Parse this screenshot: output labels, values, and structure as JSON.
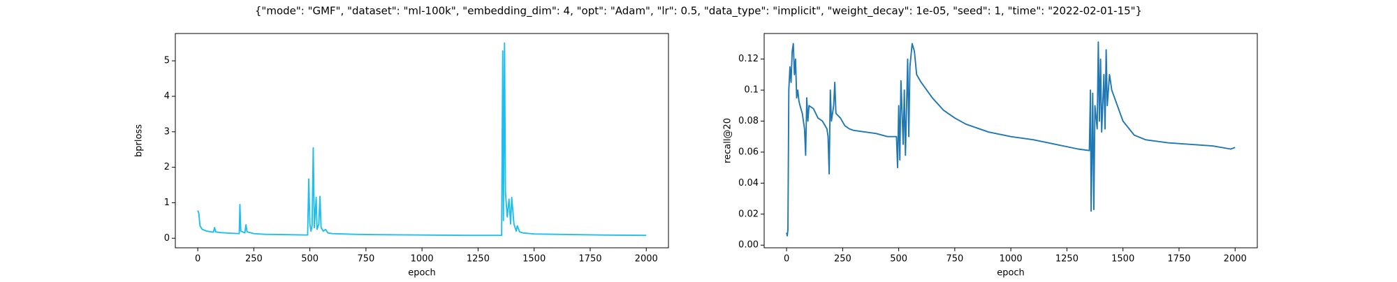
{
  "title": "{\"mode\": \"GMF\", \"dataset\": \"ml-100k\", \"embedding_dim\": 4, \"opt\": \"Adam\", \"lr\": 0.5, \"data_type\": \"implicit\", \"weight_decay\": 1e-05, \"seed\": 1, \"time\": \"2022-02-01-15\"}",
  "chart_data": [
    {
      "type": "line",
      "xlabel": "epoch",
      "ylabel": "bprloss",
      "color": "#1ebff0",
      "xlim": [
        -99.95,
        2098.95
      ],
      "ylim": [
        -0.27,
        5.77
      ],
      "xticks": [
        0,
        250,
        500,
        750,
        1000,
        1250,
        1500,
        1750,
        2000
      ],
      "yticks": [
        0,
        1,
        2,
        3,
        4,
        5
      ],
      "x": [
        0,
        5,
        10,
        20,
        40,
        70,
        75,
        80,
        100,
        150,
        185,
        188,
        192,
        200,
        210,
        215,
        220,
        250,
        300,
        400,
        490,
        495,
        500,
        505,
        510,
        515,
        520,
        528,
        532,
        540,
        545,
        550,
        560,
        570,
        580,
        600,
        700,
        800,
        1000,
        1200,
        1355,
        1360,
        1363,
        1368,
        1372,
        1380,
        1388,
        1395,
        1400,
        1410,
        1420,
        1425,
        1435,
        1450,
        1500,
        1600,
        1800,
        2000
      ],
      "values": [
        0.78,
        0.7,
        0.35,
        0.25,
        0.2,
        0.17,
        0.3,
        0.18,
        0.16,
        0.14,
        0.13,
        0.95,
        0.2,
        0.18,
        0.15,
        0.38,
        0.18,
        0.13,
        0.11,
        0.1,
        0.09,
        1.67,
        0.4,
        0.2,
        0.35,
        2.55,
        0.3,
        1.15,
        0.25,
        0.4,
        1.18,
        0.3,
        0.2,
        0.25,
        0.15,
        0.13,
        0.11,
        0.1,
        0.09,
        0.08,
        0.08,
        5.28,
        0.5,
        5.5,
        1.3,
        0.6,
        1.1,
        0.4,
        1.15,
        0.4,
        0.2,
        0.35,
        0.18,
        0.15,
        0.12,
        0.11,
        0.09,
        0.08
      ]
    },
    {
      "type": "line",
      "xlabel": "epoch",
      "ylabel": "recall@20",
      "color": "#1f77b4",
      "xlim": [
        -99.95,
        2098.95
      ],
      "ylim": [
        -0.0017,
        0.1365
      ],
      "xticks": [
        0,
        250,
        500,
        750,
        1000,
        1250,
        1500,
        1750,
        2000
      ],
      "yticks": [
        {
          "value": 0,
          "label": "0.00"
        },
        0.02,
        0.04,
        0.06,
        0.08,
        0.1,
        0.12
      ],
      "x": [
        0,
        3,
        6,
        10,
        15,
        20,
        25,
        30,
        35,
        40,
        45,
        50,
        55,
        60,
        70,
        80,
        85,
        90,
        95,
        100,
        120,
        140,
        160,
        180,
        185,
        190,
        195,
        200,
        210,
        215,
        220,
        240,
        260,
        280,
        300,
        350,
        400,
        450,
        490,
        495,
        500,
        505,
        510,
        520,
        525,
        530,
        540,
        545,
        550,
        560,
        570,
        580,
        600,
        650,
        700,
        750,
        800,
        900,
        1000,
        1100,
        1200,
        1300,
        1350,
        1355,
        1358,
        1362,
        1365,
        1370,
        1375,
        1385,
        1390,
        1395,
        1400,
        1405,
        1415,
        1420,
        1425,
        1430,
        1440,
        1450,
        1500,
        1550,
        1600,
        1700,
        1800,
        1900,
        1980,
        2000
      ],
      "values": [
        0.008,
        0.006,
        0.01,
        0.1,
        0.115,
        0.105,
        0.125,
        0.13,
        0.11,
        0.12,
        0.095,
        0.1,
        0.093,
        0.09,
        0.085,
        0.075,
        0.058,
        0.095,
        0.08,
        0.09,
        0.088,
        0.082,
        0.08,
        0.075,
        0.07,
        0.046,
        0.1,
        0.08,
        0.09,
        0.105,
        0.085,
        0.082,
        0.077,
        0.075,
        0.074,
        0.073,
        0.072,
        0.07,
        0.07,
        0.05,
        0.09,
        0.055,
        0.106,
        0.065,
        0.1,
        0.058,
        0.12,
        0.07,
        0.115,
        0.13,
        0.125,
        0.11,
        0.105,
        0.095,
        0.087,
        0.082,
        0.078,
        0.073,
        0.07,
        0.068,
        0.065,
        0.062,
        0.061,
        0.1,
        0.022,
        0.06,
        0.098,
        0.023,
        0.09,
        0.075,
        0.131,
        0.08,
        0.12,
        0.073,
        0.11,
        0.075,
        0.126,
        0.09,
        0.11,
        0.1,
        0.08,
        0.071,
        0.068,
        0.066,
        0.065,
        0.064,
        0.062,
        0.063
      ]
    }
  ]
}
